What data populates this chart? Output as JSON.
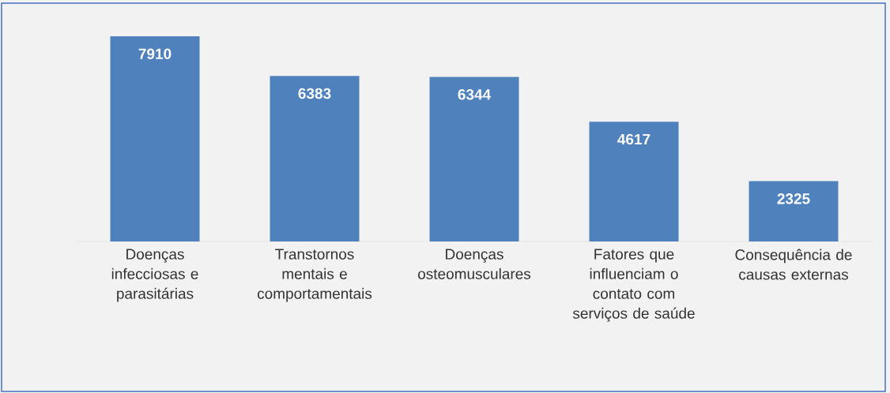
{
  "chart_data": {
    "type": "bar",
    "categories": [
      "Doenças infecciosas e parasitárias",
      "Transtornos mentais e comportamentais",
      "Doenças osteomusculares",
      "Fatores que influenciam o contato com serviços de saúde",
      "Consequência de causas externas"
    ],
    "values": [
      7910,
      6383,
      6344,
      4617,
      2325
    ],
    "color": "#4f81bd",
    "data_labels": true
  }
}
